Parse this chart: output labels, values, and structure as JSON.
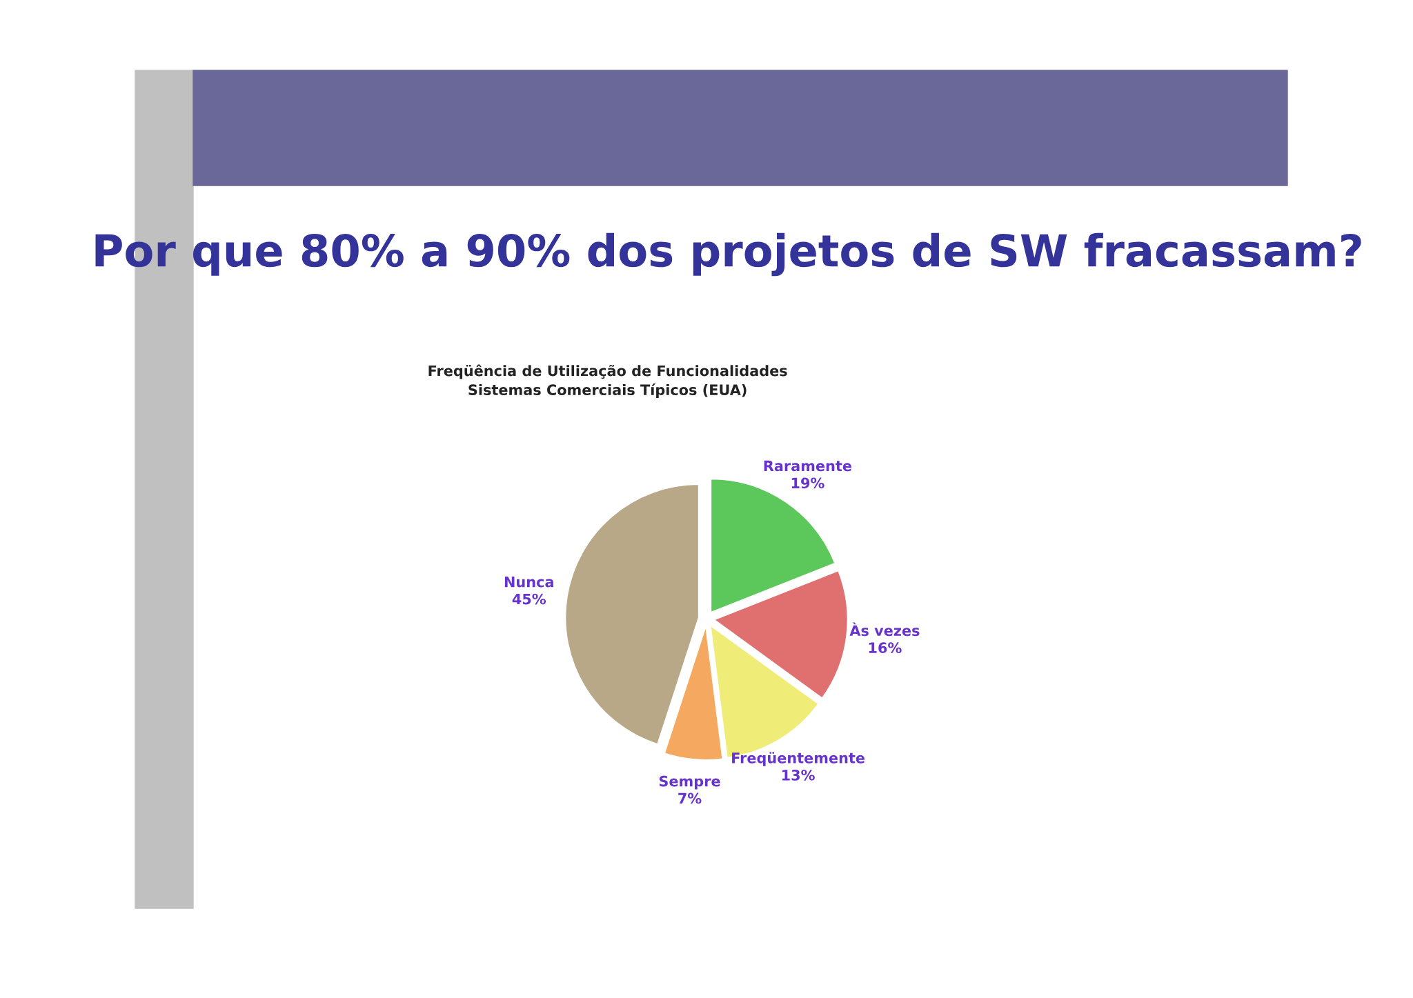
{
  "chart_data": {
    "type": "pie",
    "title": "Por que 80% a 90% dos projetos de SW fracassam?",
    "subtitle": "Freqüência de Utilização de Funcionalidades\nSistemas Comerciais Típicos (EUA)",
    "categories": [
      "Raramente",
      "Às vezes",
      "Freqüentemente",
      "Sempre",
      "Nunca"
    ],
    "values": [
      19,
      16,
      13,
      7,
      45
    ],
    "value_labels": [
      "19%",
      "16%",
      "13%",
      "7%",
      "45%"
    ],
    "colors": [
      "#5cc85c",
      "#e07070",
      "#f0ec78",
      "#f5a860",
      "#b8a888"
    ]
  }
}
